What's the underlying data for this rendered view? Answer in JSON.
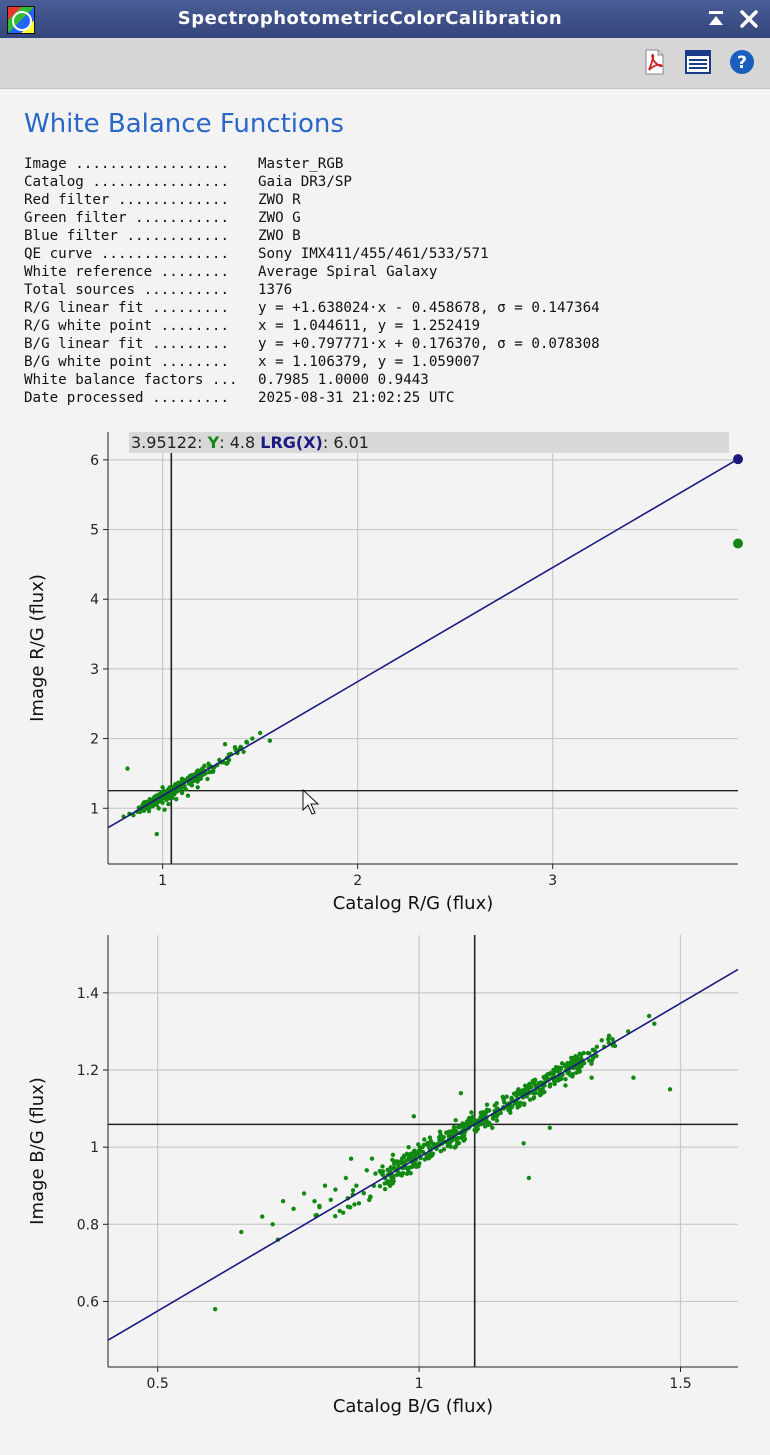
{
  "window": {
    "title": "SpectrophotometricColorCalibration",
    "shade_glyph": "⏶",
    "close_glyph": "✕"
  },
  "toolbar": {
    "icons": [
      "pdf-icon",
      "list-icon",
      "help-icon"
    ],
    "help_glyph": "?"
  },
  "report": {
    "heading": "White Balance Functions",
    "rows": [
      {
        "label": "Image ..................",
        "value": "Master_RGB"
      },
      {
        "label": "Catalog ................",
        "value": "Gaia DR3/SP"
      },
      {
        "label": "Red filter .............",
        "value": "ZWO R"
      },
      {
        "label": "Green filter ...........",
        "value": "ZWO G"
      },
      {
        "label": "Blue filter ............",
        "value": "ZWO B"
      },
      {
        "label": "QE curve ...............",
        "value": "Sony IMX411/455/461/533/571"
      },
      {
        "label": "White reference ........",
        "value": "Average Spiral Galaxy"
      },
      {
        "label": "Total sources ..........",
        "value": "1376"
      },
      {
        "label": "R/G linear fit .........",
        "value": "y = +1.638024·x - 0.458678, σ = 0.147364"
      },
      {
        "label": "R/G white point ........",
        "value": "x = 1.044611, y = 1.252419"
      },
      {
        "label": "B/G linear fit .........",
        "value": "y = +0.797771·x + 0.176370, σ = 0.078308"
      },
      {
        "label": "B/G white point ........",
        "value": "x = 1.106379, y = 1.059007"
      },
      {
        "label": "White balance factors ...",
        "value": "0.7985 1.0000 0.9443"
      },
      {
        "label": "Date processed .........",
        "value": "2025-08-31 21:02:25 UTC"
      }
    ]
  },
  "colors": {
    "points": "#118811",
    "fit_line": "#1a1a80",
    "ref_line": "#222222",
    "grid": "#c8c8c8",
    "heading": "#2a66c8"
  },
  "chart_data": [
    {
      "type": "scatter",
      "xlabel": "Catalog R/G (flux)",
      "ylabel": "Image R/G (flux)",
      "xlim": [
        0.72,
        3.95
      ],
      "ylim": [
        0.2,
        6.4
      ],
      "xticks": [
        1,
        2,
        3
      ],
      "yticks": [
        1,
        2,
        3,
        4,
        5,
        6
      ],
      "grid": true,
      "fit": {
        "slope": 1.638024,
        "intercept": -0.458678
      },
      "white_point": {
        "x": 1.044611,
        "y": 1.252419
      },
      "cursor_readout": {
        "x": "3.95122",
        "y_label": "Y",
        "y": "4.8",
        "fit_label": "LRG(X)",
        "fit": "6.01"
      },
      "highlight_points": [
        {
          "x": 3.95,
          "y": 6.01
        },
        {
          "x": 3.95,
          "y": 4.8
        }
      ],
      "scatter_points": [
        [
          0.8,
          0.88
        ],
        [
          0.83,
          0.92
        ],
        [
          0.85,
          0.9
        ],
        [
          0.87,
          0.95
        ],
        [
          0.9,
          0.98
        ],
        [
          0.92,
          1.0
        ],
        [
          0.93,
          0.96
        ],
        [
          0.95,
          1.03
        ],
        [
          0.97,
          1.05
        ],
        [
          0.98,
          1.0
        ],
        [
          1.0,
          1.08
        ],
        [
          1.02,
          1.12
        ],
        [
          1.03,
          1.06
        ],
        [
          1.05,
          1.15
        ],
        [
          1.06,
          1.2
        ],
        [
          1.07,
          1.13
        ],
        [
          1.08,
          1.25
        ],
        [
          1.1,
          1.22
        ],
        [
          1.11,
          1.3
        ],
        [
          1.12,
          1.27
        ],
        [
          1.14,
          1.35
        ],
        [
          1.15,
          1.33
        ],
        [
          1.17,
          1.4
        ],
        [
          1.19,
          1.42
        ],
        [
          1.2,
          1.47
        ],
        [
          1.22,
          1.5
        ],
        [
          1.24,
          1.52
        ],
        [
          1.26,
          1.58
        ],
        [
          1.28,
          1.62
        ],
        [
          1.3,
          1.66
        ],
        [
          1.33,
          1.72
        ],
        [
          1.35,
          1.78
        ],
        [
          1.38,
          1.83
        ],
        [
          1.4,
          1.88
        ],
        [
          1.43,
          1.95
        ],
        [
          1.46,
          2.0
        ],
        [
          1.5,
          2.08
        ],
        [
          1.55,
          1.97
        ],
        [
          1.32,
          1.92
        ],
        [
          1.0,
          1.3
        ],
        [
          0.82,
          1.57
        ],
        [
          0.97,
          0.63
        ],
        [
          1.09,
          1.36
        ],
        [
          1.13,
          1.18
        ],
        [
          1.18,
          1.3
        ],
        [
          1.23,
          1.42
        ],
        [
          0.96,
          1.12
        ],
        [
          0.91,
          1.05
        ],
        [
          1.01,
          0.98
        ],
        [
          1.04,
          1.28
        ]
      ]
    },
    {
      "type": "scatter",
      "xlabel": "Catalog B/G (flux)",
      "ylabel": "Image B/G (flux)",
      "xlim": [
        0.405,
        1.61
      ],
      "ylim": [
        0.43,
        1.55
      ],
      "xticks": [
        0.5,
        1,
        1.5
      ],
      "yticks": [
        0.6,
        0.8,
        1,
        1.2,
        1.4
      ],
      "grid": true,
      "fit": {
        "slope": 0.797771,
        "intercept": 0.17637
      },
      "white_point": {
        "x": 1.106379,
        "y": 1.059007
      },
      "scatter_points": [
        [
          0.7,
          0.82
        ],
        [
          0.72,
          0.8
        ],
        [
          0.74,
          0.86
        ],
        [
          0.76,
          0.84
        ],
        [
          0.78,
          0.88
        ],
        [
          0.8,
          0.86
        ],
        [
          0.82,
          0.9
        ],
        [
          0.84,
          0.89
        ],
        [
          0.86,
          0.92
        ],
        [
          0.88,
          0.9
        ],
        [
          0.9,
          0.94
        ],
        [
          0.91,
          0.97
        ],
        [
          0.93,
          0.95
        ],
        [
          0.95,
          0.98
        ],
        [
          0.96,
          0.93
        ],
        [
          0.98,
          1.0
        ],
        [
          1.0,
          0.98
        ],
        [
          1.01,
          1.02
        ],
        [
          1.03,
          1.0
        ],
        [
          1.04,
          1.04
        ],
        [
          1.06,
          1.03
        ],
        [
          1.07,
          1.07
        ],
        [
          1.09,
          1.05
        ],
        [
          1.1,
          1.09
        ],
        [
          1.12,
          1.08
        ],
        [
          1.13,
          1.11
        ],
        [
          1.15,
          1.1
        ],
        [
          1.16,
          1.13
        ],
        [
          1.18,
          1.12
        ],
        [
          1.19,
          1.15
        ],
        [
          1.21,
          1.14
        ],
        [
          1.22,
          1.17
        ],
        [
          1.24,
          1.16
        ],
        [
          1.25,
          1.19
        ],
        [
          1.27,
          1.2
        ],
        [
          1.29,
          1.22
        ],
        [
          1.31,
          1.24
        ],
        [
          1.34,
          1.26
        ],
        [
          1.37,
          1.28
        ],
        [
          1.4,
          1.3
        ],
        [
          1.44,
          1.34
        ],
        [
          1.45,
          1.32
        ],
        [
          1.48,
          1.15
        ],
        [
          1.41,
          1.18
        ],
        [
          1.21,
          0.92
        ],
        [
          1.2,
          1.01
        ],
        [
          1.25,
          1.05
        ],
        [
          0.66,
          0.78
        ],
        [
          0.73,
          0.76
        ],
        [
          0.87,
          0.97
        ],
        [
          0.99,
          1.08
        ],
        [
          1.08,
          1.14
        ],
        [
          1.14,
          1.05
        ],
        [
          1.28,
          1.16
        ],
        [
          1.33,
          1.18
        ],
        [
          0.61,
          0.58
        ]
      ]
    }
  ]
}
